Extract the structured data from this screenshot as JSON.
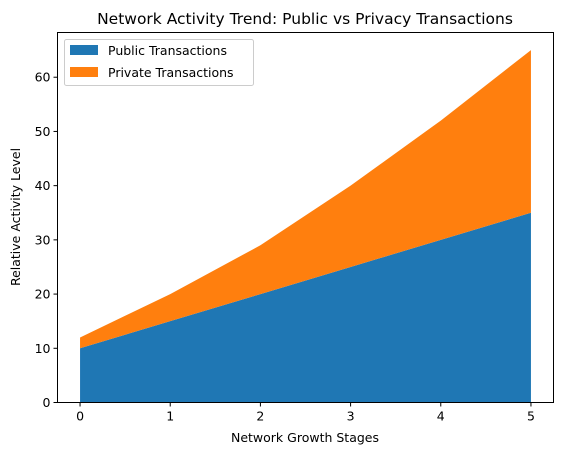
{
  "chart_data": {
    "type": "area",
    "stacked": true,
    "title": "Network Activity Trend: Public vs Privacy Transactions",
    "xlabel": "Network Growth Stages",
    "ylabel": "Relative Activity Level",
    "x": [
      0,
      1,
      2,
      3,
      4,
      5
    ],
    "xlim": [
      -0.25,
      5.25
    ],
    "ylim": [
      0,
      68.25
    ],
    "xticks": [
      0,
      1,
      2,
      3,
      4,
      5
    ],
    "yticks": [
      0,
      10,
      20,
      30,
      40,
      50,
      60
    ],
    "grid": false,
    "legend_position": "top-left",
    "series": [
      {
        "name": "Public Transactions",
        "color": "#1f77b4",
        "values": [
          10,
          15,
          20,
          25,
          30,
          35
        ]
      },
      {
        "name": "Private Transactions",
        "color": "#ff7f0e",
        "values": [
          2,
          5,
          9,
          15,
          22,
          30
        ]
      }
    ]
  }
}
